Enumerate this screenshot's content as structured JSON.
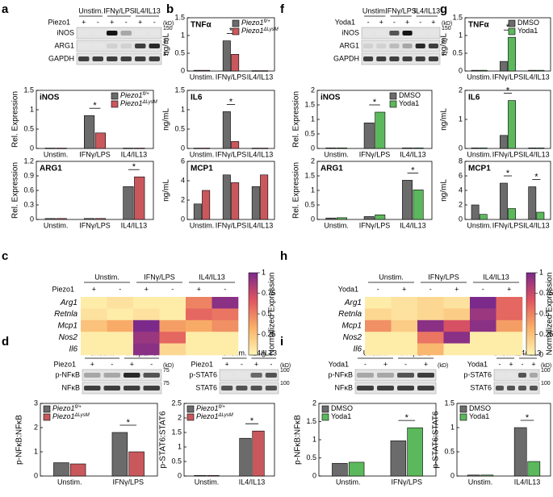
{
  "panel_labels": [
    "a",
    "b",
    "c",
    "d",
    "e",
    "f",
    "g",
    "h",
    "i",
    "j"
  ],
  "blots": [
    {
      "groups": [
        "Unstim.",
        "IFNγ/LPS",
        "IL4/IL13"
      ],
      "treatment": "Piezo1",
      "signs": [
        "+",
        "-",
        "+",
        "-",
        "+",
        "-"
      ],
      "kd_unit": "(kD)",
      "rows": [
        {
          "name": "iNOS",
          "kd": "150",
          "intensity": [
            0,
            0,
            1,
            0.3,
            0,
            0
          ]
        },
        {
          "name": "ARG1",
          "kd": "37",
          "intensity": [
            0,
            0,
            0.1,
            0.1,
            0.8,
            0.9
          ]
        },
        {
          "name": "GAPDH",
          "kd": "37",
          "intensity": [
            0.8,
            0.8,
            0.8,
            0.8,
            0.8,
            0.8
          ]
        }
      ]
    },
    {
      "groups": [
        "Unstim.",
        "IFNγ/LPS",
        "IL4/IL13"
      ],
      "treatment": "Yoda1",
      "signs": [
        "-",
        "+",
        "-",
        "+",
        "-",
        "+"
      ],
      "kd_unit": "(kD)",
      "rows": [
        {
          "name": "iNOS",
          "kd": "150",
          "intensity": [
            0,
            0,
            0.7,
            1,
            0,
            0
          ]
        },
        {
          "name": "ARG1",
          "kd": "37",
          "intensity": [
            0.1,
            0.1,
            0.2,
            0.3,
            0.9,
            0.8
          ]
        },
        {
          "name": "GAPDH",
          "kd": "37",
          "intensity": [
            0.8,
            0.8,
            0.8,
            0.8,
            0.8,
            0.8
          ]
        }
      ]
    },
    {
      "groups": [
        "Unstim.",
        "IFNγ/LPS"
      ],
      "treatment": "Piezo1",
      "signs": [
        "+",
        "-",
        "+",
        "-"
      ],
      "kd_unit": "(kD)",
      "rows": [
        {
          "name": "p-NFκB",
          "kd": "75",
          "intensity": [
            0.3,
            0.3,
            0.9,
            0.7
          ]
        },
        {
          "name": "NFκB",
          "kd": "75",
          "intensity": [
            0.8,
            0.8,
            0.8,
            0.8
          ]
        }
      ]
    },
    {
      "groups": [
        "Unstim.",
        "IL4/IL13"
      ],
      "treatment": "Piezo1",
      "signs": [
        "+",
        "-",
        "+",
        "-"
      ],
      "kd_unit": "(kD)",
      "rows": [
        {
          "name": "p-STAT6",
          "kd": "100",
          "intensity": [
            0,
            0,
            0.6,
            0.7
          ]
        },
        {
          "name": "STAT6",
          "kd": "100",
          "intensity": [
            0.7,
            0.7,
            0.7,
            0.7
          ]
        }
      ]
    },
    {
      "groups": [
        "Unstim.",
        "IFNγ/LPS"
      ],
      "treatment": "Yoda1",
      "signs": [
        "-",
        "+",
        "-",
        "+"
      ],
      "kd_unit": "(kD)",
      "rows": [
        {
          "name": "p-NFκB",
          "intensity": [
            0.3,
            0.3,
            0.7,
            0.8
          ]
        },
        {
          "name": "NFκB",
          "intensity": [
            0.8,
            0.8,
            0.8,
            0.8
          ]
        }
      ]
    },
    {
      "groups": [
        "Unstim.",
        "IL4/IL13"
      ],
      "treatment": "Yoda1",
      "signs": [
        "-",
        "+",
        "-",
        "+"
      ],
      "kd_unit": "(kD)",
      "rows": [
        {
          "name": "p-STAT6",
          "kd": "100",
          "intensity": [
            0,
            0,
            0.7,
            0.3
          ]
        },
        {
          "name": "STAT6",
          "kd": "100",
          "intensity": [
            0.7,
            0.7,
            0.7,
            0.7
          ]
        }
      ]
    }
  ],
  "chart_data": [
    {
      "type": "bar",
      "title": "iNOS",
      "ylabel": "Rel. Expression",
      "categories": [
        "Unstim.",
        "IFNγ/LPS",
        "IL4/IL13"
      ],
      "ylim": [
        0,
        1.5
      ],
      "yticks": [
        0,
        0.5,
        1,
        1.5
      ],
      "legend": "upper right",
      "italic_legend": true,
      "series": [
        {
          "name": "Piezo1",
          "sup": "fl/+",
          "color": "#6b6b6b",
          "values": [
            0.01,
            0.85,
            0.01
          ]
        },
        {
          "name": "Piezo1",
          "sup": "ΔLysM",
          "color": "#c9585d",
          "values": [
            0.01,
            0.4,
            0.01
          ]
        }
      ],
      "annotations": [
        {
          "text": "*",
          "category": "IFNγ/LPS"
        }
      ]
    },
    {
      "type": "bar",
      "title": "ARG1",
      "ylabel": "Rel. Expression",
      "categories": [
        "Unstim.",
        "IFNγ/LPS",
        "IL4/IL13"
      ],
      "ylim": [
        0,
        1.2
      ],
      "yticks": [
        0,
        0.3,
        0.6,
        0.9,
        1.2
      ],
      "series": [
        {
          "color": "#6b6b6b",
          "values": [
            0.02,
            0.02,
            0.68
          ]
        },
        {
          "color": "#c9585d",
          "values": [
            0.02,
            0.02,
            0.88
          ]
        }
      ],
      "annotations": [
        {
          "text": "*",
          "category": "IL4/IL13"
        }
      ]
    },
    {
      "type": "bar",
      "title": "TNFα",
      "ylabel": "ng/mL",
      "categories": [
        "Unstim.",
        "IFNγ/LPS",
        "IL4/IL13"
      ],
      "ylim": [
        0,
        1.5
      ],
      "yticks": [
        0,
        0.5,
        1,
        1.5
      ],
      "legend": "upper right",
      "italic_legend": true,
      "series": [
        {
          "name": "Piezo1",
          "sup": "fl/+",
          "color": "#6b6b6b",
          "values": [
            0.02,
            0.85,
            0.01
          ]
        },
        {
          "name": "Piezo1",
          "sup": "ΔLysM",
          "color": "#c9585d",
          "values": [
            0.02,
            0.47,
            0.01
          ]
        }
      ],
      "annotations": [
        {
          "text": "*",
          "category": "IFNγ/LPS"
        }
      ]
    },
    {
      "type": "bar",
      "title": "IL6",
      "ylabel": "ng/mL",
      "categories": [
        "Unstim.",
        "IFNγ/LPS",
        "IL4/IL13"
      ],
      "ylim": [
        0,
        1.5
      ],
      "yticks": [
        0,
        0.5,
        1,
        1.5
      ],
      "series": [
        {
          "color": "#6b6b6b",
          "values": [
            0.01,
            0.95,
            0.01
          ]
        },
        {
          "color": "#c9585d",
          "values": [
            0.01,
            0.18,
            0.01
          ]
        }
      ],
      "annotations": [
        {
          "text": "*",
          "category": "IFNγ/LPS"
        }
      ]
    },
    {
      "type": "bar",
      "title": "MCP1",
      "ylabel": "ng/mL",
      "categories": [
        "Unstim.",
        "IFNγ/LPS",
        "IL4/IL13"
      ],
      "ylim": [
        0,
        6
      ],
      "yticks": [
        0,
        2,
        4,
        6
      ],
      "series": [
        {
          "color": "#6b6b6b",
          "values": [
            1.6,
            4.6,
            3.4
          ]
        },
        {
          "color": "#c9585d",
          "values": [
            3.0,
            3.8,
            4.6
          ]
        }
      ]
    },
    {
      "type": "bar",
      "title": "iNOS",
      "ylabel": "Rel. Expression",
      "categories": [
        "Unstim.",
        "IFNγ/LPS",
        "IL4/IL13"
      ],
      "ylim": [
        0,
        2
      ],
      "yticks": [
        0,
        0.5,
        1,
        1.5,
        2
      ],
      "legend": "upper right",
      "series": [
        {
          "name": "DMSO",
          "color": "#6b6b6b",
          "values": [
            0.02,
            0.88,
            0.02
          ]
        },
        {
          "name": "Yoda1",
          "color": "#5cb85c",
          "values": [
            0.02,
            1.25,
            0.02
          ]
        }
      ],
      "annotations": [
        {
          "text": "*",
          "category": "IFNγ/LPS"
        }
      ]
    },
    {
      "type": "bar",
      "title": "ARG1",
      "ylabel": "Rel. Expression",
      "categories": [
        "Unstim.",
        "IFNγ/LPS",
        "IL4/IL13"
      ],
      "ylim": [
        0,
        2
      ],
      "yticks": [
        0,
        0.5,
        1,
        1.5,
        2
      ],
      "series": [
        {
          "color": "#6b6b6b",
          "values": [
            0.05,
            0.1,
            1.35
          ]
        },
        {
          "color": "#5cb85c",
          "values": [
            0.06,
            0.16,
            1.02
          ]
        }
      ],
      "annotations": [
        {
          "text": "*",
          "category": "IL4/IL13"
        }
      ]
    },
    {
      "type": "bar",
      "title": "TNFα",
      "ylabel": "ng/mL",
      "categories": [
        "Unstim.",
        "IFNγ/LPS",
        "IL4/IL13"
      ],
      "ylim": [
        0,
        1.5
      ],
      "yticks": [
        0,
        0.5,
        1,
        1.5
      ],
      "legend": "upper right",
      "series": [
        {
          "name": "DMSO",
          "color": "#6b6b6b",
          "values": [
            0.02,
            0.27,
            0.02
          ]
        },
        {
          "name": "Yoda1",
          "color": "#5cb85c",
          "values": [
            0.02,
            0.95,
            0.02
          ]
        }
      ],
      "annotations": [
        {
          "text": "*",
          "category": "IFNγ/LPS"
        }
      ]
    },
    {
      "type": "bar",
      "title": "IL6",
      "ylabel": "ng/mL",
      "categories": [
        "Unstim.",
        "IFNγ/LPS",
        "IL4/IL13"
      ],
      "ylim": [
        0,
        2
      ],
      "yticks": [
        0,
        1,
        2
      ],
      "series": [
        {
          "color": "#6b6b6b",
          "values": [
            0.02,
            0.45,
            0.02
          ]
        },
        {
          "color": "#5cb85c",
          "values": [
            0.02,
            1.65,
            0.02
          ]
        }
      ],
      "annotations": [
        {
          "text": "*",
          "category": "IFNγ/LPS"
        }
      ]
    },
    {
      "type": "bar",
      "title": "MCP1",
      "ylabel": "ng/mL",
      "categories": [
        "Unstim.",
        "IFNγ/LPS",
        "IL4/IL13"
      ],
      "ylim": [
        0,
        8
      ],
      "yticks": [
        0,
        2,
        4,
        6,
        8
      ],
      "series": [
        {
          "color": "#6b6b6b",
          "values": [
            2.0,
            5.0,
            4.5
          ]
        },
        {
          "color": "#5cb85c",
          "values": [
            0.7,
            1.5,
            1.0
          ]
        }
      ],
      "annotations": [
        {
          "text": "*",
          "category": "IFNγ/LPS"
        },
        {
          "text": "*",
          "category": "IL4/IL13"
        }
      ]
    },
    {
      "type": "bar",
      "ylabel": "p-NFκB:NFκB",
      "categories": [
        "Unstim.",
        "IFNγ/LPS"
      ],
      "ylim": [
        0,
        3
      ],
      "yticks": [
        0,
        1,
        2,
        3
      ],
      "legend": "upper left",
      "italic_legend": true,
      "series": [
        {
          "name": "Piezo1",
          "sup": "fl/+",
          "color": "#6b6b6b",
          "values": [
            0.55,
            1.8
          ]
        },
        {
          "name": "Piezo1",
          "sup": "ΔLysM",
          "color": "#c9585d",
          "values": [
            0.5,
            1.0
          ]
        }
      ],
      "annotations": [
        {
          "text": "*",
          "category": "IFNγ/LPS"
        }
      ]
    },
    {
      "type": "bar",
      "ylabel": "p-STAT6:STAT6",
      "categories": [
        "Unstim.",
        "IL4/IL13"
      ],
      "ylim": [
        0,
        2.5
      ],
      "yticks": [
        0,
        0.5,
        1,
        1.5,
        2,
        2.5
      ],
      "legend": "upper left",
      "italic_legend": true,
      "series": [
        {
          "name": "Piezo1",
          "sup": "fl/+",
          "color": "#6b6b6b",
          "values": [
            0.02,
            1.3
          ]
        },
        {
          "name": "Piezo1",
          "sup": "ΔLysM",
          "color": "#c9585d",
          "values": [
            0.02,
            1.55
          ]
        }
      ],
      "annotations": [
        {
          "text": "*",
          "category": "IL4/IL13"
        }
      ]
    },
    {
      "type": "bar",
      "ylabel": "p-NFκB:NFκB",
      "categories": [
        "Unstim.",
        "IFNγ/LPS"
      ],
      "ylim": [
        0,
        2
      ],
      "yticks": [
        0,
        0.5,
        1,
        1.5,
        2
      ],
      "legend": "upper left",
      "series": [
        {
          "name": "DMSO",
          "color": "#6b6b6b",
          "values": [
            0.35,
            0.97
          ]
        },
        {
          "name": "Yoda1",
          "color": "#5cb85c",
          "values": [
            0.38,
            1.33
          ]
        }
      ],
      "annotations": [
        {
          "text": "*",
          "category": "IFNγ/LPS"
        }
      ]
    },
    {
      "type": "bar",
      "ylabel": "p-STAT6:STAT6",
      "categories": [
        "Unstim.",
        "IL4/IL13"
      ],
      "ylim": [
        0,
        1.5
      ],
      "yticks": [
        0,
        0.5,
        1,
        1.5
      ],
      "legend": "upper left",
      "series": [
        {
          "name": "DMSO",
          "color": "#6b6b6b",
          "values": [
            0.02,
            1.0
          ]
        },
        {
          "name": "Yoda1",
          "color": "#5cb85c",
          "values": [
            0.02,
            0.3
          ]
        }
      ],
      "annotations": [
        {
          "text": "*",
          "category": "IL4/IL13"
        }
      ]
    },
    {
      "type": "heatmap",
      "treatment": "Piezo1",
      "groups": [
        "Unstim.",
        "IFNγ/LPS",
        "IL4/IL13"
      ],
      "signs": [
        "+",
        "-",
        "+",
        "-",
        "+",
        "-"
      ],
      "rows": [
        "Arg1",
        "Retnla",
        "Mcp1",
        "Nos2",
        "Il6"
      ],
      "values": [
        [
          0.05,
          0.1,
          0.05,
          0.05,
          0.5,
          0.95
        ],
        [
          0.1,
          0.05,
          0.1,
          0.05,
          0.6,
          0.55
        ],
        [
          0.25,
          0.35,
          1.0,
          0.4,
          0.35,
          0.45
        ],
        [
          0.05,
          0.05,
          0.9,
          0.6,
          0.05,
          0.05
        ],
        [
          0.05,
          0.05,
          0.95,
          0.15,
          0.05,
          0.05
        ]
      ],
      "colors": [
        "#fff6b5",
        "#f9b067",
        "#e0555f",
        "#7b2a8c"
      ],
      "clim": [
        0,
        1
      ],
      "cticks": [
        0,
        0.25,
        0.5,
        0.75,
        1
      ],
      "clabel": "Normalized Expression"
    },
    {
      "type": "heatmap",
      "treatment": "Yoda1",
      "groups": [
        "Unstim.",
        "IFNγ/LPS",
        "IL4/IL13"
      ],
      "signs": [
        "-",
        "+",
        "-",
        "+",
        "-",
        "+"
      ],
      "rows": [
        "Arg1",
        "Retnla",
        "Mcp1",
        "Nos2",
        "Il6"
      ],
      "values": [
        [
          0.05,
          0.1,
          0.15,
          0.1,
          1.0,
          0.6
        ],
        [
          0.15,
          0.1,
          0.15,
          0.2,
          0.9,
          0.6
        ],
        [
          0.45,
          0.2,
          0.95,
          0.7,
          0.95,
          0.4
        ],
        [
          0.05,
          0.05,
          0.55,
          0.95,
          0.05,
          0.05
        ],
        [
          0.05,
          0.05,
          0.3,
          0.05,
          0.05,
          0.05
        ]
      ],
      "colors": [
        "#fff6b5",
        "#f9b067",
        "#e0555f",
        "#7b2a8c"
      ],
      "clim": [
        0,
        1
      ],
      "cticks": [
        0,
        0.25,
        0.5,
        0.75,
        1
      ],
      "clabel": "Normalized Expression"
    }
  ]
}
